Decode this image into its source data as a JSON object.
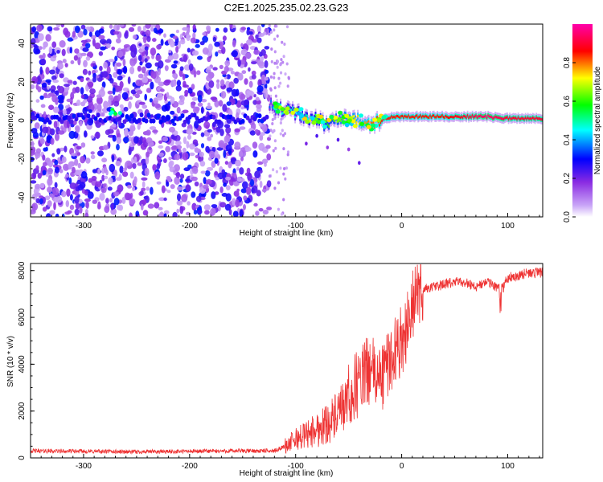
{
  "title": "C2E1.2025.235.02.23.G23",
  "chart_data": [
    {
      "type": "heatmap",
      "xlabel": "Height of straight line (km)",
      "ylabel": "Frequency (Hz)",
      "xlim": [
        -350,
        133
      ],
      "ylim": [
        -50,
        50
      ],
      "xticks": [
        -300,
        -200,
        -100,
        0,
        100
      ],
      "yticks": [
        -40,
        -20,
        0,
        20,
        40
      ],
      "colorbar": {
        "label": "Normalized spectral amplitude",
        "range": [
          0,
          1
        ],
        "ticks": [
          "0.0",
          "0.2",
          "0.4",
          "0.6",
          "0.8"
        ],
        "colors": [
          "#ffffff",
          "#8a2be2",
          "#0000ff",
          "#00ffff",
          "#00ff00",
          "#ffff00",
          "#ff0000",
          "#ff00ff"
        ]
      },
      "noise_region_x": [
        -350,
        -125
      ],
      "signal_trace": {
        "x": [
          -125,
          -110,
          -100,
          -90,
          -80,
          -70,
          -60,
          -50,
          -40,
          -30,
          -20,
          -10,
          0,
          20,
          40,
          60,
          80,
          100,
          133
        ],
        "freq": [
          8,
          5,
          4,
          2,
          0,
          -2,
          2,
          0,
          0,
          -2,
          0,
          2,
          2,
          2,
          2,
          2,
          2,
          1,
          1
        ],
        "amplitude": [
          0.35,
          0.5,
          0.45,
          0.5,
          0.55,
          0.6,
          0.65,
          0.7,
          0.75,
          0.8,
          0.85,
          0.85,
          0.85,
          0.85,
          0.85,
          0.9,
          0.95,
          0.9,
          0.9
        ]
      },
      "spur_points": {
        "x": [
          -90,
          -80,
          -70,
          -60,
          -50,
          -40
        ],
        "freq": [
          -12,
          -8,
          -14,
          -10,
          -15,
          -22
        ]
      }
    },
    {
      "type": "line",
      "xlabel": "Height of straight line (km)",
      "ylabel": "SNR (10 * v/v)",
      "xlim": [
        -350,
        133
      ],
      "ylim": [
        0,
        8300
      ],
      "xticks": [
        -300,
        -200,
        -100,
        0,
        100
      ],
      "yticks": [
        0,
        2000,
        4000,
        6000,
        8000
      ],
      "color": "#ee3333",
      "series": [
        {
          "name": "SNR",
          "x": [
            -350,
            -300,
            -250,
            -200,
            -150,
            -120,
            -110,
            -100,
            -90,
            -80,
            -70,
            -60,
            -50,
            -40,
            -30,
            -20,
            -10,
            -5,
            0,
            5,
            10,
            15,
            20,
            30,
            40,
            50,
            60,
            70,
            80,
            90,
            95,
            100,
            110,
            120,
            133
          ],
          "y": [
            300,
            280,
            260,
            280,
            300,
            300,
            500,
            800,
            1000,
            1200,
            1500,
            1800,
            2500,
            3300,
            3800,
            3300,
            4300,
            4700,
            5000,
            5600,
            6500,
            7000,
            7200,
            7300,
            7400,
            7500,
            7500,
            7300,
            7500,
            7300,
            7200,
            7700,
            7800,
            7900,
            7900
          ]
        }
      ]
    }
  ]
}
